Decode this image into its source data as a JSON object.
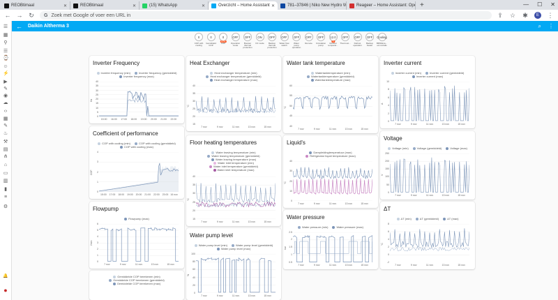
{
  "browser": {
    "tabs": [
      {
        "title": "REOBtimaal",
        "color": "#111"
      },
      {
        "title": "REOBtimaal",
        "color": "#111"
      },
      {
        "title": "(15) WhatsApp",
        "color": "#25d366"
      },
      {
        "title": "Overzicht – Home Assistant",
        "color": "#03a9f4"
      },
      {
        "title": "781–37846 | Niko New Hydro W...",
        "color": "#0d47a1"
      },
      {
        "title": "Reageer – Home Assistant: Oper...",
        "color": "#d32f2f"
      }
    ],
    "new_tab": "+",
    "url_placeholder": "Zoek met Google of voer een URL in",
    "profile_initial": "E"
  },
  "header": {
    "back": "←",
    "title": "Daikin Altherma 3",
    "search": "⌕",
    "menu": "⋮"
  },
  "badges": [
    {
      "value": "0",
      "label": "COP with cooling",
      "unit": ""
    },
    {
      "value": "0",
      "label": "Gemiddeld COP",
      "unit": ""
    },
    {
      "value": "0",
      "label": "COP",
      "unit": "W/W"
    },
    {
      "value": "OFF",
      "label": "Operation mode",
      "unit": ""
    },
    {
      "value": "OFF",
      "label": "Booster thermal protection",
      "unit": ""
    },
    {
      "value": "ON",
      "label": "I/O mode",
      "unit": ""
    },
    {
      "value": "OFF",
      "label": "Backup thermal protection",
      "unit": ""
    },
    {
      "value": "OFF",
      "label": "Water flow switch",
      "unit": ""
    },
    {
      "value": "OFF",
      "label": "Water pump operation",
      "unit": ""
    },
    {
      "value": "OFF",
      "label": "Remote",
      "unit": ""
    },
    {
      "value": "OFF",
      "label": "Circulation pump",
      "unit": ""
    },
    {
      "value": "12.0",
      "label": "Outdoor temperat...",
      "unit": "°C"
    },
    {
      "value": "OFF",
      "label": "Thermost...",
      "unit": ""
    },
    {
      "value": "OFF",
      "label": "Defrost operation",
      "unit": ""
    },
    {
      "value": "OFF",
      "label": "Backup heater",
      "unit": ""
    },
    {
      "value": "Cooling",
      "label": "BMS/Ena... ext.curtails",
      "unit": ""
    }
  ],
  "cards": [
    {
      "key": "inverter_frequency",
      "title": "Inverter Frequency",
      "legend": [
        [
          "Inverter frequency (min)",
          "Inverter frequency (gemiddeld)"
        ],
        [
          "Inverter frequency (max)"
        ]
      ],
      "xticks": [
        "15:00",
        "16:00",
        "17:00",
        "18:00",
        "19:00",
        "20:00",
        "21:00",
        "22:00"
      ],
      "yticks": [
        "40",
        "35",
        "30",
        "25",
        "20",
        "15",
        "10",
        "5",
        "0"
      ],
      "ylabel": "Hz",
      "colors": [
        "#c5d2e0",
        "#94a9c6",
        "#7c95b8"
      ]
    },
    {
      "key": "cop",
      "title": "Coefficient of performance",
      "legend": [
        [
          "COP with cooling (min)",
          "COP with cooling (gemiddeld)"
        ],
        [
          "COP with cooling (max)"
        ]
      ],
      "xticks": [
        "15:00",
        "17:00",
        "18:00",
        "19:00",
        "20:00",
        "21:00",
        "22:00",
        "23:00",
        "16 nov"
      ],
      "yticks": [
        "4",
        "3",
        "2",
        "1",
        "0"
      ],
      "ylabel": "COP",
      "colors": [
        "#c5d2e0",
        "#94a9c6",
        "#7c95b8"
      ]
    },
    {
      "key": "flowpump",
      "title": "Flowpump",
      "legend": [
        [
          "Flowpump (max)"
        ]
      ],
      "xticks": [
        "7 nov",
        "9 nov",
        "11 nov",
        "13 nov",
        "15 nov"
      ],
      "yticks": [
        "6",
        "5",
        "4",
        "3",
        "2",
        "1",
        "0"
      ],
      "ylabel": "l/min",
      "colors": [
        "#7c95b8"
      ]
    },
    {
      "key": "gem_cop",
      "title": "",
      "legend": [
        [
          "Gemiddelde COP berekenen (min)"
        ],
        [
          "Gemiddelde COP berekenen (gemiddeld)"
        ],
        [
          "Gemiddelde COP berekenen (max)"
        ]
      ],
      "xticks": [],
      "yticks": [],
      "ylabel": "",
      "colors": [
        "#c5d2e0",
        "#94a9c6",
        "#7c95b8"
      ]
    },
    {
      "key": "heat_exchanger",
      "title": "Heat Exchanger",
      "legend": [
        [
          "Heat exchanger temperature (min)"
        ],
        [
          "Heat exchanger temperature (gemiddeld)"
        ],
        [
          "Heat exchanger temperature (max)"
        ]
      ],
      "xticks": [
        "7 nov",
        "9 nov",
        "11 nov",
        "13 nov",
        "15 nov"
      ],
      "yticks": [
        "40",
        "35",
        "30",
        "25",
        "20",
        "15"
      ],
      "ylabel": "°C",
      "colors": [
        "#c5d2e0",
        "#94a9c6",
        "#7c95b8"
      ]
    },
    {
      "key": "floor_heating",
      "title": "Floor heating temperatures",
      "legend": [
        [
          "Water leaving temperature (min)"
        ],
        [
          "Water leaving temperature (gemiddeld)"
        ],
        [
          "Water leaving temperature (max)"
        ],
        [
          "Water inlet temperature (min)"
        ],
        [
          "Water inlet temperature (gemiddeld)"
        ],
        [
          "Water inlet temperature (max)"
        ]
      ],
      "xticks": [
        "7 nov",
        "9 nov",
        "11 nov",
        "13 nov",
        "15 nov"
      ],
      "yticks": [
        "40",
        "35",
        "30",
        "25",
        "20",
        "15"
      ],
      "ylabel": "°C",
      "colors": [
        "#c5d2e0",
        "#94a9c6",
        "#7c95b8",
        "#e6b8e0",
        "#c987c4",
        "#a65aa3"
      ]
    },
    {
      "key": "water_pump_level",
      "title": "Water pump level",
      "legend": [
        [
          "Water pump level (min)",
          "Water pump level (gemiddeld)"
        ],
        [
          "Water pump level (max)"
        ]
      ],
      "xticks": [
        "7 nov",
        "9 nov",
        "11 nov",
        "13 nov",
        "15 nov"
      ],
      "yticks": [
        "100",
        "80",
        "60",
        "40",
        "20",
        "0"
      ],
      "ylabel": "%",
      "colors": [
        "#c5d2e0",
        "#94a9c6",
        "#7c95b8"
      ]
    },
    {
      "key": "water_tank",
      "title": "Water tank temperature",
      "legend": [
        [
          "Watertanktemperature (min)"
        ],
        [
          "Watertanktemperature (gemiddeld)"
        ],
        [
          "Watertanktemperature (max)"
        ]
      ],
      "xticks": [
        "7 nov",
        "9 nov",
        "11 nov",
        "13 nov",
        "15 nov"
      ],
      "yticks": [
        "60",
        "55",
        "50",
        "45",
        "40"
      ],
      "ylabel": "°C",
      "colors": [
        "#c5d2e0",
        "#94a9c6",
        "#7c95b8"
      ]
    },
    {
      "key": "liquid",
      "title": "Liquid's",
      "legend": [
        [
          "Dampleidingtemperatuur (max)"
        ],
        [
          "Refrigerator liquid temperature (max)"
        ]
      ],
      "xticks": [
        "7 nov",
        "9 nov",
        "11 nov",
        "13 nov",
        "15 nov"
      ],
      "yticks": [
        "40",
        "30",
        "20",
        "10",
        "0"
      ],
      "ylabel": "°C",
      "colors": [
        "#7c95b8",
        "#c987c4"
      ]
    },
    {
      "key": "water_pressure",
      "title": "Water pressure",
      "legend": [
        [
          "Water pressure (min)",
          "Water pressure (max)"
        ]
      ],
      "xticks": [
        "7 nov",
        "9 nov",
        "11 nov",
        "13 nov",
        "15 nov"
      ],
      "yticks": [
        "2.5",
        "2",
        "1.5",
        "1",
        "0.5"
      ],
      "ylabel": "bar",
      "colors": [
        "#94a9c6",
        "#7c95b8"
      ]
    },
    {
      "key": "inverter_current",
      "title": "Inverter current",
      "legend": [
        [
          "Inverter current (min)",
          "Inverter current (gemiddeld)"
        ],
        [
          "Inverter current (max)"
        ]
      ],
      "xticks": [
        "7 nov",
        "9 nov",
        "11 nov",
        "13 nov",
        "15 nov"
      ],
      "yticks": [
        "10",
        "8",
        "6",
        "4",
        "2",
        "0"
      ],
      "ylabel": "A",
      "colors": [
        "#c5d2e0",
        "#94a9c6",
        "#7c95b8"
      ]
    },
    {
      "key": "voltage",
      "title": "Voltage",
      "legend": [
        [
          "Voltage (min)",
          "Voltage (gemiddeld)",
          "Voltage (max)"
        ]
      ],
      "xticks": [
        "7 nov",
        "9 nov",
        "11 nov",
        "13 nov",
        "15 nov"
      ],
      "yticks": [
        "250",
        "200",
        "150",
        "100",
        "50",
        "0"
      ],
      "ylabel": "V",
      "colors": [
        "#c5d2e0",
        "#94a9c6",
        "#7c95b8"
      ]
    },
    {
      "key": "delta_t",
      "title": "ΔT",
      "legend": [
        [
          "ΔT (min)",
          "ΔT (gemiddeld)",
          "ΔT (max)"
        ]
      ],
      "xticks": [
        "7 nov",
        "9 nov",
        "11 nov",
        "13 nov",
        "15 nov"
      ],
      "yticks": [
        "8",
        "6",
        "4",
        "2",
        "0",
        "-2"
      ],
      "ylabel": "°C",
      "colors": [
        "#c5d2e0",
        "#94a9c6",
        "#7c95b8"
      ]
    }
  ]
}
